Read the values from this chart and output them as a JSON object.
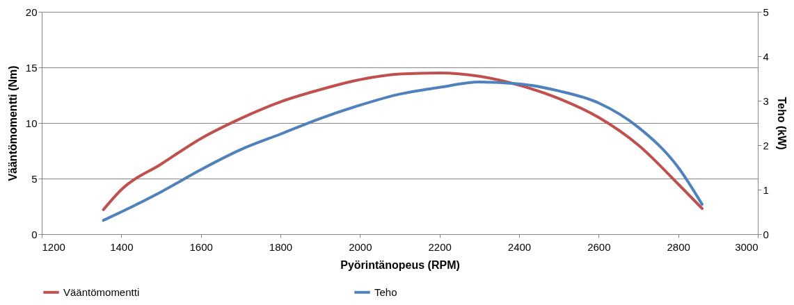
{
  "chart_data": {
    "type": "line",
    "xlabel": "Pyörintänopeus (RPM)",
    "ylabel": "Vääntömomentti (Nm)",
    "y2label": "Teho (kW)",
    "xlim": [
      1200,
      3000
    ],
    "xticks": [
      1200,
      1400,
      1600,
      1800,
      2000,
      2200,
      2400,
      2600,
      2800,
      3000
    ],
    "ylim": [
      0,
      20
    ],
    "yticks": [
      0,
      5,
      10,
      15,
      20
    ],
    "y2lim": [
      0,
      5
    ],
    "y2ticks": [
      0,
      1,
      2,
      3,
      4,
      5
    ],
    "grid": "y",
    "legend": "bottom",
    "marker": "none",
    "line_style": "solid",
    "series": [
      {
        "name": "Vääntömomentti",
        "color": "#c0504d",
        "x": [
          1355,
          1400,
          1500,
          1600,
          1700,
          1800,
          1900,
          2000,
          2100,
          2200,
          2300,
          2400,
          2500,
          2600,
          2700,
          2800,
          2860
        ],
        "values": [
          2.2,
          4.0,
          6.3,
          8.6,
          10.4,
          11.9,
          13.0,
          13.9,
          14.4,
          14.5,
          14.2,
          13.4,
          12.2,
          10.5,
          8.0,
          4.5,
          2.3
        ]
      },
      {
        "name": "Teho",
        "color": "#4f81bd",
        "axis": "y2",
        "x": [
          1355,
          1400,
          1500,
          1600,
          1700,
          1800,
          1900,
          2000,
          2100,
          2200,
          2300,
          2400,
          2500,
          2600,
          2700,
          2800,
          2860
        ],
        "values": [
          0.31,
          0.5,
          0.95,
          1.45,
          1.9,
          2.25,
          2.6,
          2.9,
          3.15,
          3.3,
          3.42,
          3.38,
          3.22,
          2.95,
          2.4,
          1.5,
          0.67
        ]
      }
    ]
  }
}
